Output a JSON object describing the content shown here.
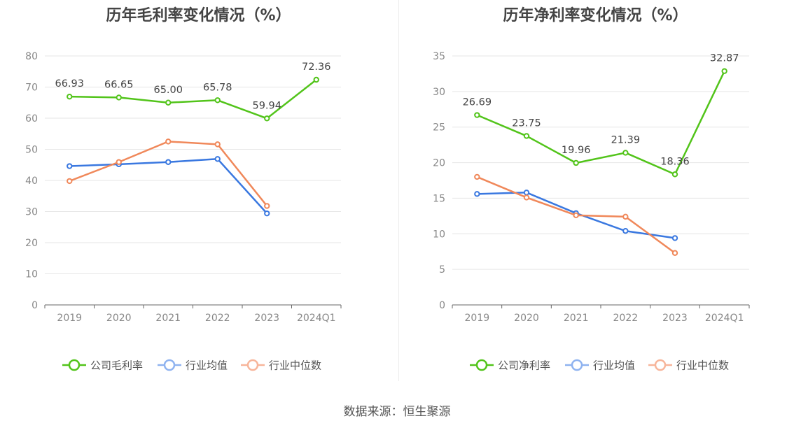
{
  "chart_data": [
    {
      "type": "line",
      "title": "历年毛利率变化情况（%）",
      "categories": [
        "2019",
        "2020",
        "2021",
        "2022",
        "2023",
        "2024Q1"
      ],
      "ylim": [
        0,
        80
      ],
      "yticks": [
        0,
        10,
        20,
        30,
        40,
        50,
        60,
        70,
        80
      ],
      "grid": true,
      "legend_position": "bottom",
      "series": [
        {
          "name": "公司毛利率",
          "color": "#52c41a",
          "labeled": true,
          "values": [
            66.93,
            66.65,
            65.0,
            65.78,
            59.94,
            72.36
          ],
          "labels": [
            "66.93",
            "66.65",
            "65.00",
            "65.78",
            "59.94",
            "72.36"
          ]
        },
        {
          "name": "行业均值",
          "color": "#3a78e0",
          "labeled": false,
          "values": [
            44.6,
            45.2,
            45.9,
            46.9,
            29.4,
            null
          ]
        },
        {
          "name": "行业中位数",
          "color": "#f0885a",
          "labeled": false,
          "values": [
            39.8,
            45.9,
            52.5,
            51.6,
            31.8,
            null
          ]
        }
      ]
    },
    {
      "type": "line",
      "title": "历年净利率变化情况（%）",
      "categories": [
        "2019",
        "2020",
        "2021",
        "2022",
        "2023",
        "2024Q1"
      ],
      "ylim": [
        0,
        35
      ],
      "yticks": [
        0,
        5,
        10,
        15,
        20,
        25,
        30,
        35
      ],
      "grid": true,
      "legend_position": "bottom",
      "series": [
        {
          "name": "公司净利率",
          "color": "#52c41a",
          "labeled": true,
          "values": [
            26.69,
            23.75,
            19.96,
            21.39,
            18.36,
            32.87
          ],
          "labels": [
            "26.69",
            "23.75",
            "19.96",
            "21.39",
            "18.36",
            "32.87"
          ]
        },
        {
          "name": "行业均值",
          "color": "#3a78e0",
          "labeled": false,
          "values": [
            15.6,
            15.8,
            12.9,
            10.4,
            9.4,
            null
          ]
        },
        {
          "name": "行业中位数",
          "color": "#f0885a",
          "labeled": false,
          "values": [
            18.0,
            15.1,
            12.6,
            12.4,
            7.3,
            null
          ]
        }
      ]
    }
  ],
  "legend_colors": {
    "公司毛利率": "#52c41a",
    "行业均值": "#8fb3f0",
    "行业中位数": "#f7b59a"
  },
  "source": "数据来源：恒生聚源"
}
